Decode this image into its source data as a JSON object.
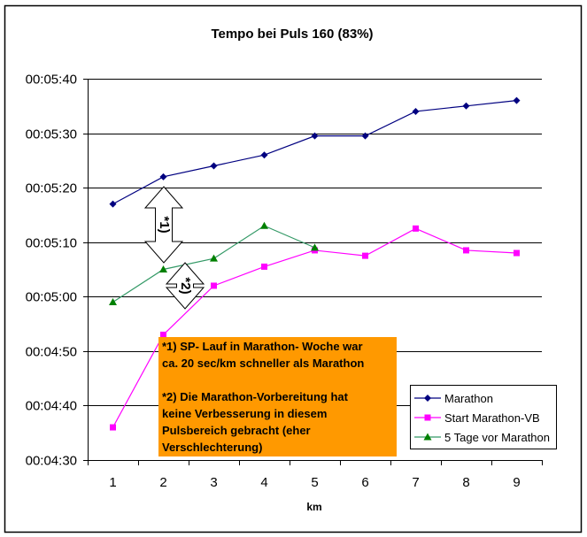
{
  "chart_data": {
    "type": "line",
    "title": "Tempo bei Puls 160 (83%)",
    "xlabel": "km",
    "ylabel": "",
    "categories": [
      "1",
      "2",
      "3",
      "4",
      "5",
      "6",
      "7",
      "8",
      "9"
    ],
    "y_unit": "time mm:ss per km",
    "ylim": [
      "00:04:30",
      "00:05:40"
    ],
    "yticks": [
      "00:05:40",
      "00:05:30",
      "00:05:20",
      "00:05:10",
      "00:05:00",
      "00:04:50",
      "00:04:40",
      "00:04:30"
    ],
    "grid": true,
    "legend_position": "bottom-right",
    "series": [
      {
        "name": "Marathon",
        "color": "#000080",
        "marker": "diamond",
        "values": [
          "00:05:17",
          "00:05:22",
          "00:05:24",
          "00:05:26",
          "00:05:29.5",
          "00:05:29.5",
          "00:05:34",
          "00:05:35",
          "00:05:36"
        ]
      },
      {
        "name": "Start Marathon-VB",
        "color": "#ff00ff",
        "marker": "square",
        "values": [
          "00:04:36",
          "00:04:53",
          "00:05:02",
          "00:05:05.5",
          "00:05:08.5",
          "00:05:07.5",
          "00:05:12.5",
          "00:05:08.5",
          "00:05:08"
        ]
      },
      {
        "name": "5 Tage vor Marathon",
        "color": "#008000",
        "line_color": "#339966",
        "marker": "triangle",
        "values": [
          "00:04:59",
          "00:05:05",
          "00:05:07",
          "00:05:13",
          "00:05:09",
          null,
          null,
          null,
          null
        ]
      }
    ],
    "annotations": [
      {
        "label": "*1)",
        "type": "double-arrow",
        "between": "Marathon and 5 Tage vor Marathon at km 2"
      },
      {
        "label": "*2)",
        "type": "double-arrow",
        "between": "5 Tage vor Marathon and Start Marathon-VB at km 2"
      }
    ]
  },
  "notes": {
    "line1": "*1) SP- Lauf in Marathon- Woche war",
    "line2": "ca. 20 sec/km schneller als Marathon",
    "line3": "*2) Die Marathon-Vorbereitung hat",
    "line4": "keine Verbesserung in diesem",
    "line5": "Pulsbereich gebracht (eher",
    "line6": "Verschlechterung)",
    "background": "#ff9900"
  }
}
